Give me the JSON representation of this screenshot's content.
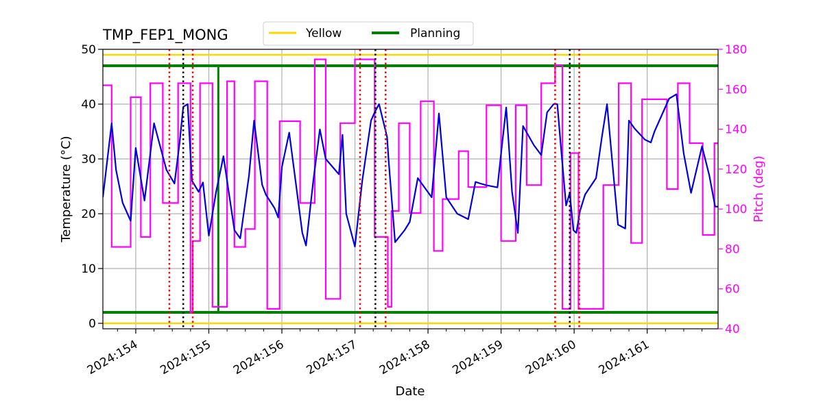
{
  "chart_data": {
    "type": "line",
    "title": "TMP_FEP1_MONG",
    "xlabel": "Date",
    "ylabel": "Temperature ($^\\circ$C)",
    "ylabel_display": "Temperature (°C)",
    "y2label": "Pitch (deg)",
    "xlim": [
      153.55,
      161.97
    ],
    "ylim": [
      -1,
      50
    ],
    "y2lim": [
      40,
      180
    ],
    "x_ticks": [
      154,
      155,
      156,
      157,
      158,
      159,
      160,
      161
    ],
    "x_tick_labels": [
      "2024:154",
      "2024:155",
      "2024:156",
      "2024:157",
      "2024:158",
      "2024:159",
      "2024:160",
      "2024:161"
    ],
    "y_ticks": [
      0,
      10,
      20,
      30,
      40,
      50
    ],
    "y_tick_labels": [
      "0",
      "10",
      "20",
      "30",
      "40",
      "50"
    ],
    "y2_ticks": [
      40,
      60,
      80,
      100,
      120,
      140,
      160,
      180
    ],
    "y2_tick_labels": [
      "40",
      "60",
      "80",
      "100",
      "120",
      "140",
      "160",
      "180"
    ],
    "grid": true,
    "legend": {
      "placement": "top-center, above plot",
      "entries": [
        {
          "label": "Yellow",
          "color": "#FFD700"
        },
        {
          "label": "Planning",
          "color": "#008000"
        }
      ]
    },
    "colors": {
      "temperature": "#0000DD",
      "pitch": "#FF00FF",
      "yellow": "#FFD700",
      "planning": "#008000",
      "red_vline": "#FF0000",
      "black_vline": "#000000",
      "grid": "#B0B0B0",
      "pitch_axis": "#FF00FF"
    },
    "hlines": [
      {
        "y": 49,
        "color": "yellow"
      },
      {
        "y": 0,
        "color": "yellow"
      },
      {
        "y": 47,
        "color": "planning"
      },
      {
        "y": 2,
        "color": "planning"
      }
    ],
    "vline_planning_x": 155.13,
    "vlines_red": [
      154.46,
      154.78,
      157.07,
      157.42,
      159.74,
      160.07
    ],
    "vlines_black": [
      154.65,
      157.28,
      159.94
    ],
    "series": [
      {
        "axis": "left",
        "color_key": "temperature",
        "x": [
          153.55,
          153.67,
          153.73,
          153.82,
          153.93,
          154.0,
          154.12,
          154.25,
          154.42,
          154.53,
          154.6,
          154.65,
          154.71,
          154.77,
          154.86,
          154.92,
          155.0,
          155.1,
          155.2,
          155.35,
          155.43,
          155.55,
          155.62,
          155.73,
          155.78,
          155.9,
          155.95,
          156.0,
          156.1,
          156.28,
          156.33,
          156.43,
          156.52,
          156.6,
          156.78,
          156.83,
          156.88,
          157.0,
          157.1,
          157.22,
          157.27,
          157.33,
          157.44,
          157.46,
          157.55,
          157.68,
          157.75,
          157.86,
          158.05,
          158.15,
          158.25,
          158.4,
          158.55,
          158.65,
          158.72,
          158.8,
          158.95,
          159.0,
          159.07,
          159.15,
          159.23,
          159.3,
          159.45,
          159.55,
          159.63,
          159.72,
          159.77,
          159.82,
          159.89,
          159.94,
          159.99,
          160.03,
          160.08,
          160.15,
          160.3,
          160.38,
          160.45,
          160.6,
          160.7,
          160.75,
          160.83,
          160.97,
          161.05,
          161.1,
          161.3,
          161.4,
          161.5,
          161.6,
          161.75,
          161.85,
          161.93,
          161.97
        ],
        "y": [
          23,
          36.5,
          28,
          22,
          18.7,
          32,
          22.4,
          36.5,
          28,
          25.5,
          33,
          39.5,
          40,
          26,
          24,
          25.7,
          16,
          24,
          30.5,
          17,
          15.5,
          27,
          37,
          25.3,
          23.5,
          21,
          19.3,
          28.5,
          34.8,
          16.5,
          14.2,
          26,
          35.4,
          30,
          27.2,
          34.4,
          20,
          14,
          26,
          37,
          38.5,
          40,
          34,
          30,
          14.8,
          17,
          18.5,
          26.5,
          23,
          38.3,
          23,
          20,
          19,
          25.8,
          25.5,
          25.2,
          24.8,
          31,
          39.4,
          24,
          16.5,
          36,
          32.5,
          30.7,
          38.5,
          40,
          40,
          32,
          21.5,
          23.8,
          17,
          16.5,
          20.5,
          23.5,
          26.5,
          34,
          40,
          18,
          17.3,
          37,
          35.5,
          33.5,
          33,
          35,
          41,
          41.8,
          31,
          23.8,
          32.3,
          27,
          21.3,
          21.3
        ]
      },
      {
        "axis": "right",
        "color_key": "pitch",
        "x": [
          153.55,
          153.67,
          153.67,
          153.93,
          153.93,
          154.07,
          154.07,
          154.2,
          154.2,
          154.37,
          154.37,
          154.58,
          154.58,
          154.75,
          154.75,
          154.78,
          154.78,
          154.88,
          154.88,
          155.05,
          155.05,
          155.25,
          155.25,
          155.35,
          155.35,
          155.5,
          155.5,
          155.63,
          155.63,
          155.8,
          155.8,
          155.97,
          155.97,
          156.25,
          156.25,
          156.45,
          156.45,
          156.6,
          156.6,
          156.8,
          156.8,
          157.0,
          157.0,
          157.27,
          157.27,
          157.45,
          157.45,
          157.5,
          157.5,
          157.6,
          157.6,
          157.75,
          157.75,
          157.9,
          157.9,
          158.08,
          158.08,
          158.2,
          158.2,
          158.42,
          158.42,
          158.55,
          158.55,
          158.8,
          158.8,
          159.0,
          159.0,
          159.2,
          159.2,
          159.35,
          159.35,
          159.55,
          159.55,
          159.74,
          159.74,
          159.84,
          159.84,
          159.95,
          159.95,
          160.06,
          160.06,
          160.4,
          160.4,
          160.61,
          160.61,
          160.78,
          160.78,
          160.93,
          160.93,
          161.27,
          161.27,
          161.42,
          161.42,
          161.58,
          161.58,
          161.76,
          161.76,
          161.92,
          161.92,
          161.97
        ],
        "y": [
          162,
          162,
          81,
          81,
          156,
          156,
          86,
          86,
          163,
          163,
          103,
          103,
          163,
          163,
          48,
          48,
          84,
          84,
          163,
          163,
          51,
          51,
          164,
          164,
          81,
          81,
          90,
          90,
          164,
          164,
          50,
          50,
          144,
          144,
          103,
          103,
          175,
          175,
          55,
          55,
          143,
          143,
          175,
          175,
          86,
          86,
          51,
          51,
          99,
          99,
          143,
          143,
          98,
          98,
          154,
          154,
          79,
          79,
          105,
          105,
          129,
          129,
          111,
          111,
          152,
          152,
          84,
          84,
          152,
          152,
          112,
          112,
          163,
          163,
          172,
          172,
          50,
          50,
          128,
          128,
          50,
          50,
          112,
          112,
          163,
          163,
          83,
          83,
          155,
          155,
          110,
          110,
          163,
          163,
          133,
          133,
          87,
          87,
          133,
          133
        ]
      }
    ]
  }
}
